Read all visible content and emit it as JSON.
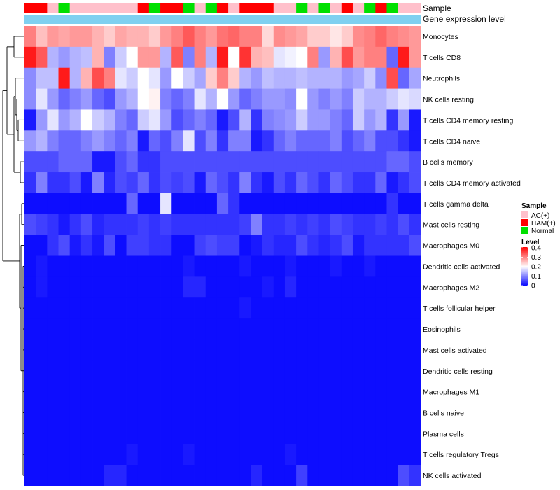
{
  "chart_data": {
    "type": "heatmap",
    "annotation_labels": [
      "Sample",
      "Gene expression level"
    ],
    "sample_legend": {
      "title": "Sample",
      "entries": [
        {
          "label": "AC(+)",
          "color": "#ffc0cb"
        },
        {
          "label": "HAM(+)",
          "color": "#ff0000"
        },
        {
          "label": "Normal",
          "color": "#00e000"
        }
      ]
    },
    "level_legend": {
      "title": "Level",
      "ticks": [
        "0.4",
        "0.3",
        "0.2",
        "0.1",
        "0"
      ],
      "range": [
        0,
        0.4
      ],
      "colors": [
        "#0000ff",
        "#ffffff",
        "#ff0000"
      ]
    },
    "gene_expression_color": "#7fd0f0",
    "sample_groups": [
      "H",
      "H",
      "A",
      "N",
      "A",
      "A",
      "A",
      "A",
      "A",
      "A",
      "H",
      "N",
      "H",
      "H",
      "N",
      "A",
      "N",
      "H",
      "A",
      "H",
      "H",
      "H",
      "A",
      "A",
      "N",
      "A",
      "N",
      "A",
      "H",
      "A",
      "N",
      "H",
      "N",
      "A",
      "A"
    ],
    "rows": [
      {
        "name": "Monocytes",
        "values": [
          0.3,
          0.25,
          0.28,
          0.27,
          0.28,
          0.28,
          0.26,
          0.24,
          0.27,
          0.26,
          0.26,
          0.24,
          0.28,
          0.3,
          0.33,
          0.3,
          0.28,
          0.31,
          0.32,
          0.3,
          0.3,
          0.23,
          0.29,
          0.28,
          0.27,
          0.24,
          0.24,
          0.22,
          0.24,
          0.29,
          0.3,
          0.32,
          0.3,
          0.29,
          0.28
        ]
      },
      {
        "name": "T cells CD8",
        "values": [
          0.38,
          0.33,
          0.14,
          0.12,
          0.14,
          0.15,
          0.26,
          0.1,
          0.16,
          0.2,
          0.28,
          0.28,
          0.14,
          0.33,
          0.1,
          0.3,
          0.14,
          0.38,
          0.2,
          0.36,
          0.26,
          0.25,
          0.18,
          0.19,
          0.2,
          0.3,
          0.12,
          0.26,
          0.34,
          0.28,
          0.3,
          0.3,
          0.08,
          0.38,
          0.28
        ]
      },
      {
        "name": "Neutrophils",
        "values": [
          0.11,
          0.15,
          0.15,
          0.38,
          0.14,
          0.26,
          0.34,
          0.3,
          0.18,
          0.16,
          0.2,
          0.18,
          0.12,
          0.2,
          0.16,
          0.13,
          0.24,
          0.3,
          0.24,
          0.14,
          0.12,
          0.15,
          0.14,
          0.14,
          0.15,
          0.14,
          0.14,
          0.14,
          0.12,
          0.13,
          0.16,
          0.11,
          0.34,
          0.08,
          0.13
        ]
      },
      {
        "name": "NK cells resting",
        "values": [
          0.11,
          0.18,
          0.12,
          0.08,
          0.1,
          0.12,
          0.08,
          0.06,
          0.12,
          0.14,
          0.2,
          0.21,
          0.1,
          0.08,
          0.1,
          0.18,
          0.14,
          0.2,
          0.12,
          0.08,
          0.1,
          0.12,
          0.12,
          0.11,
          0.2,
          0.12,
          0.1,
          0.12,
          0.1,
          0.16,
          0.14,
          0.14,
          0.16,
          0.18,
          0.17
        ]
      },
      {
        "name": "T cells CD4 memory resting",
        "values": [
          0.02,
          0.12,
          0.18,
          0.12,
          0.14,
          0.2,
          0.16,
          0.14,
          0.1,
          0.08,
          0.16,
          0.18,
          0.12,
          0.06,
          0.08,
          0.1,
          0.08,
          0.02,
          0.06,
          0.14,
          0.04,
          0.1,
          0.11,
          0.12,
          0.16,
          0.12,
          0.12,
          0.1,
          0.08,
          0.16,
          0.12,
          0.14,
          0.04,
          0.12,
          0.02
        ]
      },
      {
        "name": "T cells CD4 naive",
        "values": [
          0.12,
          0.14,
          0.1,
          0.08,
          0.08,
          0.1,
          0.12,
          0.1,
          0.08,
          0.1,
          0.02,
          0.08,
          0.06,
          0.1,
          0.18,
          0.06,
          0.1,
          0.04,
          0.1,
          0.1,
          0.02,
          0.04,
          0.08,
          0.1,
          0.08,
          0.08,
          0.08,
          0.1,
          0.06,
          0.08,
          0.1,
          0.06,
          0.06,
          0.04,
          0.02
        ]
      },
      {
        "name": "B cells memory",
        "values": [
          0.06,
          0.06,
          0.06,
          0.08,
          0.08,
          0.08,
          0.02,
          0.02,
          0.06,
          0.08,
          0.04,
          0.04,
          0.06,
          0.06,
          0.06,
          0.06,
          0.06,
          0.06,
          0.06,
          0.06,
          0.06,
          0.06,
          0.06,
          0.06,
          0.06,
          0.06,
          0.06,
          0.06,
          0.06,
          0.06,
          0.06,
          0.06,
          0.08,
          0.08,
          0.06
        ]
      },
      {
        "name": "T cells CD4 memory activated",
        "values": [
          0.04,
          0.1,
          0.04,
          0.04,
          0.06,
          0.02,
          0.1,
          0.03,
          0.06,
          0.05,
          0.08,
          0.04,
          0.06,
          0.05,
          0.06,
          0.02,
          0.08,
          0.06,
          0.04,
          0.1,
          0.04,
          0.02,
          0.06,
          0.04,
          0.08,
          0.06,
          0.04,
          0.08,
          0.06,
          0.04,
          0.04,
          0.08,
          0.02,
          0.04,
          0.06
        ]
      },
      {
        "name": "T cells gamma delta",
        "values": [
          0.01,
          0.01,
          0.01,
          0.01,
          0.01,
          0.01,
          0.01,
          0.01,
          0.01,
          0.08,
          0.01,
          0.01,
          0.18,
          0.01,
          0.01,
          0.01,
          0.01,
          0.08,
          0.04,
          0.01,
          0.01,
          0.01,
          0.01,
          0.01,
          0.01,
          0.01,
          0.01,
          0.01,
          0.01,
          0.01,
          0.01,
          0.01,
          0.04,
          0.01,
          0.01
        ]
      },
      {
        "name": "Mast cells resting",
        "values": [
          0.06,
          0.05,
          0.04,
          0.02,
          0.04,
          0.06,
          0.03,
          0.04,
          0.04,
          0.04,
          0.05,
          0.04,
          0.05,
          0.04,
          0.04,
          0.04,
          0.04,
          0.04,
          0.04,
          0.05,
          0.1,
          0.04,
          0.04,
          0.05,
          0.04,
          0.05,
          0.04,
          0.06,
          0.05,
          0.04,
          0.04,
          0.05,
          0.04,
          0.06,
          0.04
        ]
      },
      {
        "name": "Macrophages M0",
        "values": [
          0.01,
          0.01,
          0.04,
          0.06,
          0.02,
          0.04,
          0.02,
          0.06,
          0.01,
          0.05,
          0.05,
          0.04,
          0.04,
          0.01,
          0.01,
          0.05,
          0.06,
          0.05,
          0.05,
          0.01,
          0.02,
          0.04,
          0.03,
          0.03,
          0.06,
          0.04,
          0.03,
          0.04,
          0.06,
          0.02,
          0.04,
          0.04,
          0.04,
          0.04,
          0.06
        ]
      },
      {
        "name": "Dendritic cells activated",
        "values": [
          0.01,
          0.02,
          0.01,
          0.01,
          0.01,
          0.01,
          0.01,
          0.01,
          0.01,
          0.01,
          0.01,
          0.01,
          0.01,
          0.01,
          0.02,
          0.01,
          0.01,
          0.01,
          0.01,
          0.02,
          0.01,
          0.01,
          0.01,
          0.02,
          0.01,
          0.01,
          0.01,
          0.02,
          0.01,
          0.01,
          0.02,
          0.01,
          0.01,
          0.01,
          0.01
        ]
      },
      {
        "name": "Macrophages M2",
        "values": [
          0.01,
          0.02,
          0.01,
          0.01,
          0.01,
          0.01,
          0.01,
          0.01,
          0.01,
          0.01,
          0.01,
          0.01,
          0.01,
          0.01,
          0.03,
          0.03,
          0.01,
          0.01,
          0.01,
          0.01,
          0.01,
          0.02,
          0.01,
          0.03,
          0.01,
          0.01,
          0.01,
          0.01,
          0.01,
          0.01,
          0.01,
          0.01,
          0.01,
          0.01,
          0.01
        ]
      },
      {
        "name": "T cells follicular helper",
        "values": [
          0.01,
          0.01,
          0.01,
          0.01,
          0.01,
          0.01,
          0.01,
          0.01,
          0.01,
          0.01,
          0.01,
          0.01,
          0.01,
          0.01,
          0.01,
          0.01,
          0.01,
          0.01,
          0.01,
          0.02,
          0.01,
          0.01,
          0.01,
          0.01,
          0.01,
          0.01,
          0.01,
          0.01,
          0.01,
          0.01,
          0.01,
          0.01,
          0.01,
          0.01,
          0.01
        ]
      },
      {
        "name": "Eosinophils",
        "values": [
          0.01,
          0.01,
          0.01,
          0.01,
          0.01,
          0.01,
          0.01,
          0.01,
          0.01,
          0.01,
          0.01,
          0.01,
          0.01,
          0.01,
          0.01,
          0.01,
          0.01,
          0.01,
          0.01,
          0.01,
          0.01,
          0.01,
          0.01,
          0.01,
          0.01,
          0.01,
          0.01,
          0.01,
          0.01,
          0.01,
          0.01,
          0.01,
          0.01,
          0.01,
          0.01
        ]
      },
      {
        "name": "Mast cells activated",
        "values": [
          0.01,
          0.01,
          0.01,
          0.01,
          0.01,
          0.01,
          0.01,
          0.01,
          0.01,
          0.01,
          0.01,
          0.01,
          0.01,
          0.01,
          0.01,
          0.01,
          0.01,
          0.01,
          0.01,
          0.01,
          0.01,
          0.01,
          0.01,
          0.01,
          0.01,
          0.01,
          0.01,
          0.01,
          0.01,
          0.01,
          0.01,
          0.01,
          0.01,
          0.01,
          0.01
        ]
      },
      {
        "name": "Dendritic cells resting",
        "values": [
          0.01,
          0.01,
          0.01,
          0.01,
          0.01,
          0.01,
          0.01,
          0.01,
          0.01,
          0.01,
          0.01,
          0.01,
          0.01,
          0.01,
          0.01,
          0.01,
          0.01,
          0.01,
          0.01,
          0.01,
          0.01,
          0.01,
          0.01,
          0.01,
          0.01,
          0.01,
          0.01,
          0.01,
          0.01,
          0.01,
          0.01,
          0.01,
          0.01,
          0.01,
          0.01
        ]
      },
      {
        "name": "Macrophages M1",
        "values": [
          0.01,
          0.01,
          0.01,
          0.01,
          0.01,
          0.01,
          0.01,
          0.01,
          0.01,
          0.01,
          0.01,
          0.01,
          0.01,
          0.01,
          0.01,
          0.01,
          0.01,
          0.01,
          0.01,
          0.01,
          0.01,
          0.01,
          0.01,
          0.01,
          0.01,
          0.01,
          0.01,
          0.01,
          0.01,
          0.01,
          0.01,
          0.01,
          0.01,
          0.01,
          0.01
        ]
      },
      {
        "name": "B cells naive",
        "values": [
          0.01,
          0.01,
          0.01,
          0.01,
          0.01,
          0.01,
          0.01,
          0.01,
          0.01,
          0.01,
          0.01,
          0.01,
          0.01,
          0.01,
          0.01,
          0.01,
          0.01,
          0.01,
          0.01,
          0.01,
          0.01,
          0.01,
          0.01,
          0.01,
          0.01,
          0.01,
          0.01,
          0.01,
          0.01,
          0.01,
          0.01,
          0.01,
          0.01,
          0.01,
          0.01
        ]
      },
      {
        "name": "Plasma cells",
        "values": [
          0.01,
          0.01,
          0.01,
          0.01,
          0.01,
          0.01,
          0.01,
          0.01,
          0.01,
          0.01,
          0.01,
          0.01,
          0.01,
          0.01,
          0.01,
          0.01,
          0.01,
          0.01,
          0.01,
          0.01,
          0.01,
          0.01,
          0.01,
          0.01,
          0.01,
          0.01,
          0.01,
          0.01,
          0.01,
          0.01,
          0.01,
          0.01,
          0.01,
          0.01,
          0.01
        ]
      },
      {
        "name": "T cells regulatory  Tregs",
        "values": [
          0.01,
          0.01,
          0.01,
          0.01,
          0.01,
          0.01,
          0.01,
          0.01,
          0.01,
          0.02,
          0.01,
          0.01,
          0.01,
          0.01,
          0.02,
          0.01,
          0.01,
          0.01,
          0.01,
          0.01,
          0.01,
          0.01,
          0.01,
          0.02,
          0.01,
          0.01,
          0.01,
          0.01,
          0.01,
          0.01,
          0.01,
          0.01,
          0.01,
          0.01,
          0.01
        ]
      },
      {
        "name": "NK cells activated",
        "values": [
          0.01,
          0.01,
          0.01,
          0.01,
          0.01,
          0.01,
          0.01,
          0.03,
          0.03,
          0.01,
          0.01,
          0.01,
          0.01,
          0.01,
          0.01,
          0.01,
          0.01,
          0.01,
          0.01,
          0.01,
          0.03,
          0.01,
          0.01,
          0.01,
          0.05,
          0.01,
          0.01,
          0.01,
          0.01,
          0.01,
          0.01,
          0.01,
          0.01,
          0.06,
          0.04
        ]
      }
    ]
  }
}
